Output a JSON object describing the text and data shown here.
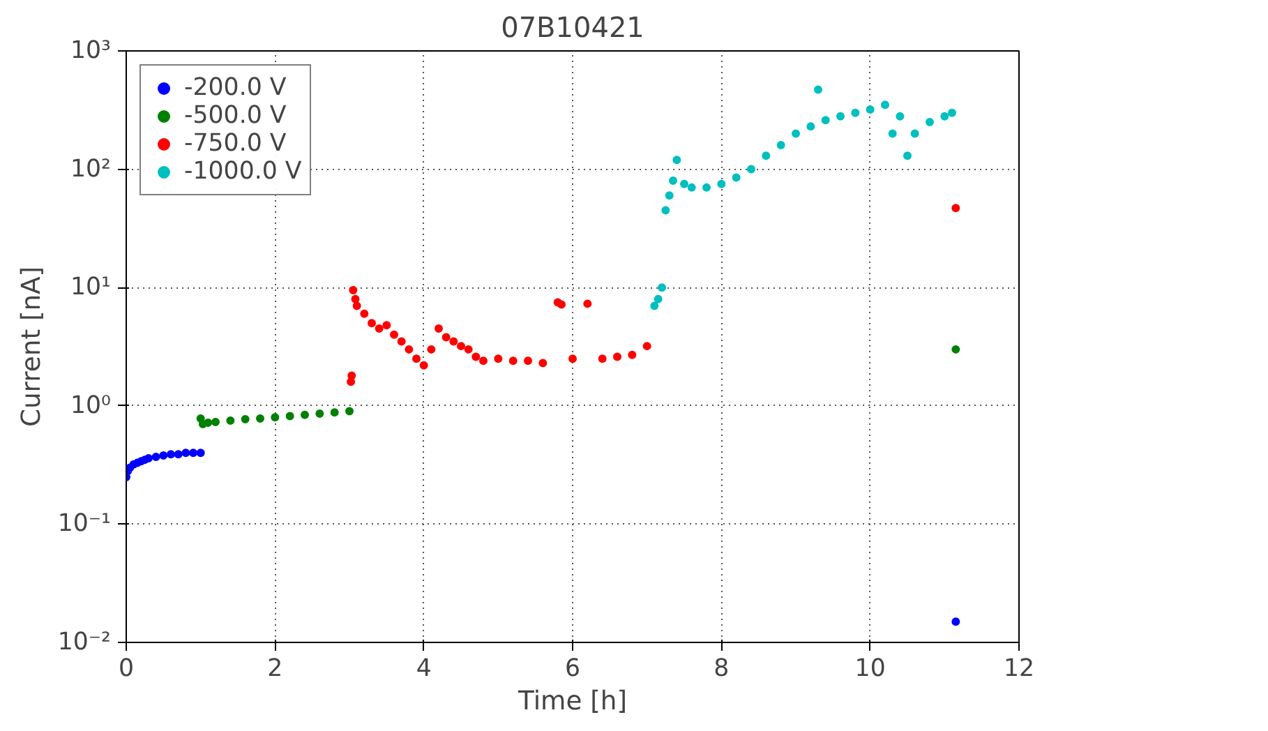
{
  "chart_data": {
    "type": "scatter",
    "title": "07B10421",
    "xlabel": "Time [h]",
    "ylabel": "Current [nA]",
    "xlim": [
      0,
      12
    ],
    "xticks": [
      0,
      2,
      4,
      6,
      8,
      10,
      12
    ],
    "ylim": [
      0.01,
      1000
    ],
    "yticks": [
      {
        "value": 0.01,
        "label": "10⁻²"
      },
      {
        "value": 0.1,
        "label": "10⁻¹"
      },
      {
        "value": 1,
        "label": "10⁰"
      },
      {
        "value": 10,
        "label": "10¹"
      },
      {
        "value": 100,
        "label": "10²"
      },
      {
        "value": 1000,
        "label": "10³"
      }
    ],
    "log": "y",
    "grid": true,
    "legend": "top left",
    "marker": "circle",
    "series": [
      {
        "name": "-200.0 V",
        "color": "#0000ff",
        "x": [
          0,
          0.02,
          0.05,
          0.1,
          0.15,
          0.2,
          0.25,
          0.3,
          0.4,
          0.5,
          0.6,
          0.7,
          0.8,
          0.9,
          1.0,
          11.15
        ],
        "values": [
          0.25,
          0.28,
          0.3,
          0.32,
          0.33,
          0.34,
          0.35,
          0.36,
          0.37,
          0.38,
          0.39,
          0.39,
          0.4,
          0.4,
          0.4,
          0.015
        ]
      },
      {
        "name": "-500.0 V",
        "color": "#008000",
        "x": [
          1.0,
          1.03,
          1.1,
          1.2,
          1.4,
          1.6,
          1.8,
          2.0,
          2.2,
          2.4,
          2.6,
          2.8,
          3.0,
          11.15
        ],
        "values": [
          0.78,
          0.7,
          0.72,
          0.73,
          0.75,
          0.77,
          0.78,
          0.8,
          0.82,
          0.84,
          0.86,
          0.88,
          0.9,
          3.0
        ]
      },
      {
        "name": "-750.0 V",
        "color": "#ff0000",
        "x": [
          3.02,
          3.03,
          3.05,
          3.08,
          3.1,
          3.2,
          3.3,
          3.4,
          3.5,
          3.6,
          3.7,
          3.8,
          3.9,
          4.0,
          4.1,
          4.2,
          4.3,
          4.4,
          4.5,
          4.6,
          4.7,
          4.8,
          5.0,
          5.2,
          5.4,
          5.6,
          5.8,
          5.85,
          6.0,
          6.2,
          6.4,
          6.6,
          6.8,
          7.0,
          11.15
        ],
        "values": [
          1.6,
          1.8,
          9.5,
          8,
          7,
          6,
          5,
          4.5,
          4.8,
          4,
          3.5,
          3,
          2.5,
          2.2,
          3,
          4.5,
          3.8,
          3.5,
          3.2,
          3,
          2.6,
          2.4,
          2.5,
          2.4,
          2.4,
          2.3,
          7.5,
          7.2,
          2.5,
          7.3,
          2.5,
          2.6,
          2.7,
          3.2,
          47
        ]
      },
      {
        "name": "-1000.0 V",
        "color": "#00bfbf",
        "x": [
          7.1,
          7.15,
          7.2,
          7.25,
          7.3,
          7.35,
          7.4,
          7.5,
          7.6,
          7.8,
          8.0,
          8.2,
          8.4,
          8.6,
          8.8,
          9.0,
          9.2,
          9.3,
          9.4,
          9.6,
          9.8,
          10.0,
          10.2,
          10.3,
          10.4,
          10.5,
          10.6,
          10.8,
          11.0,
          11.1
        ],
        "values": [
          7,
          8,
          10,
          45,
          60,
          80,
          120,
          75,
          70,
          70,
          75,
          85,
          100,
          130,
          160,
          200,
          230,
          470,
          260,
          280,
          300,
          320,
          350,
          200,
          280,
          130,
          200,
          250,
          280,
          300
        ]
      }
    ]
  }
}
